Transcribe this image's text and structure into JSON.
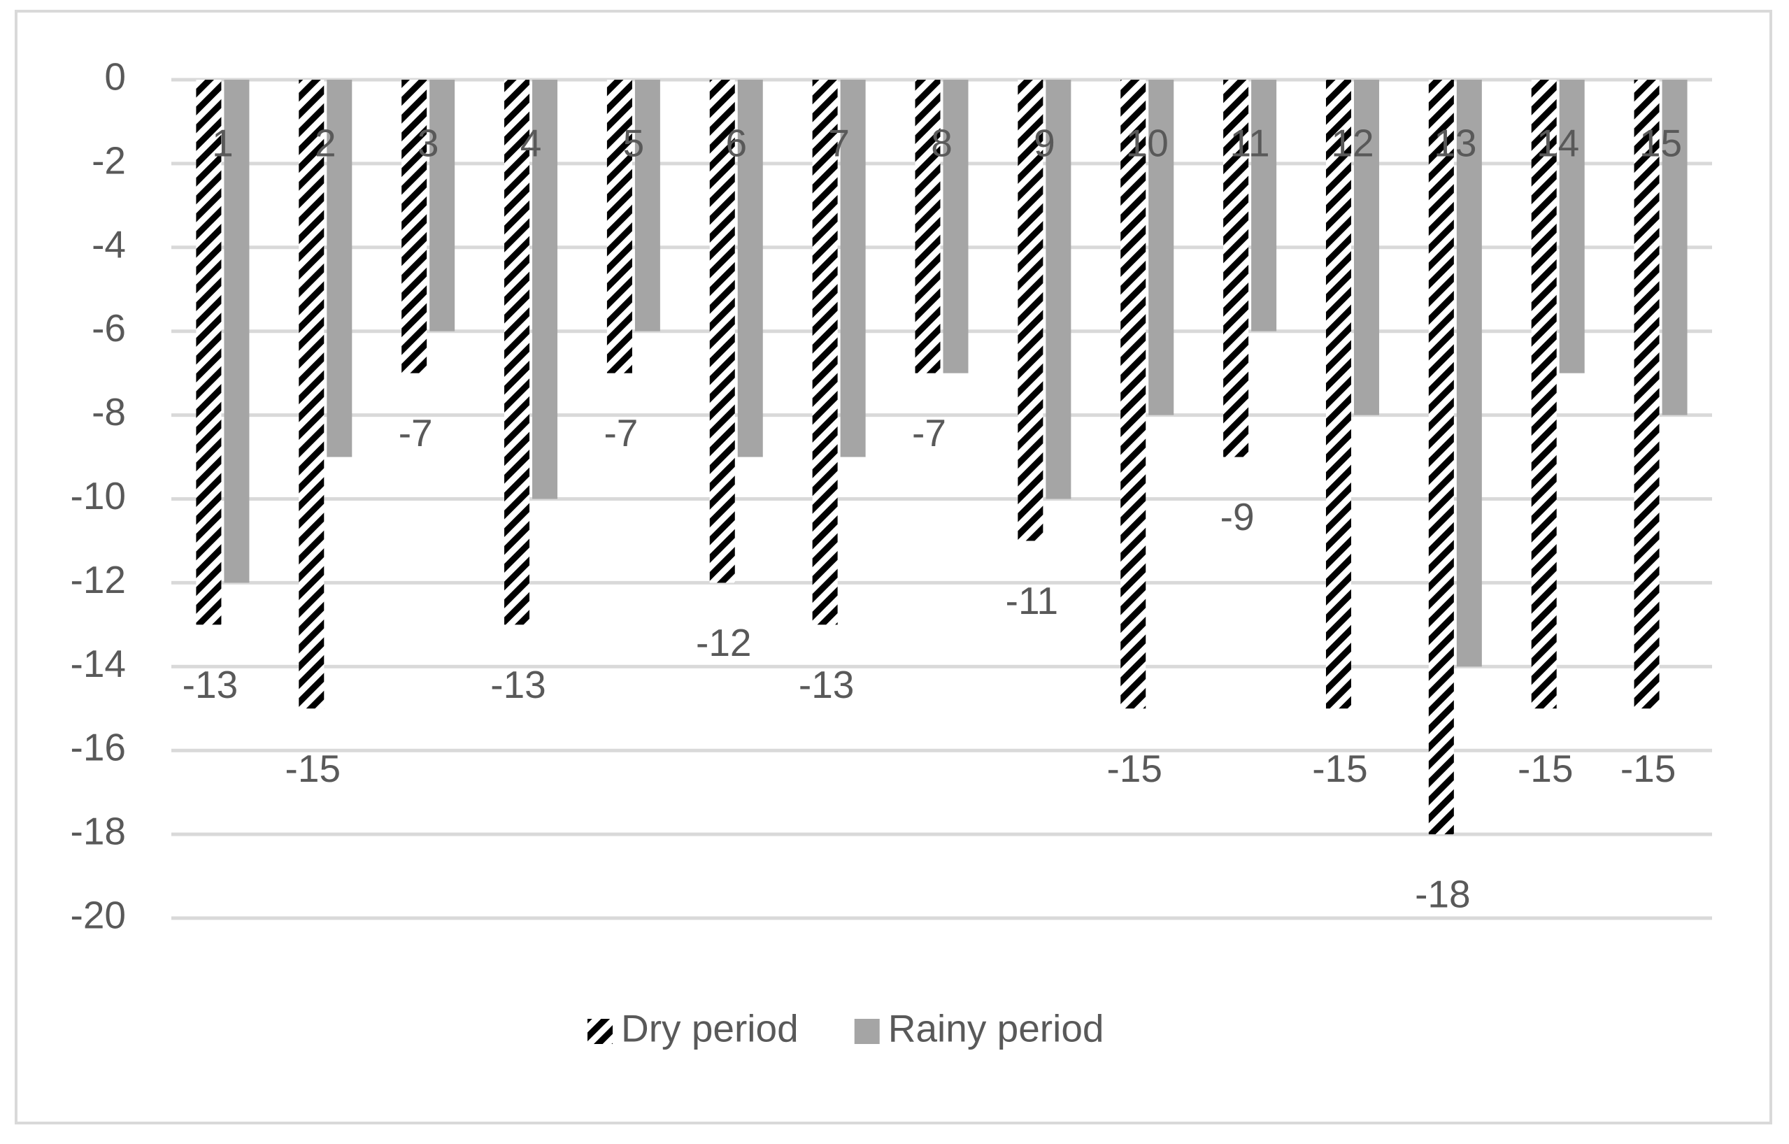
{
  "chart_data": {
    "type": "bar",
    "categories": [
      "1",
      "2",
      "3",
      "4",
      "5",
      "6",
      "7",
      "8",
      "9",
      "10",
      "11",
      "12",
      "13",
      "14",
      "15"
    ],
    "series": [
      {
        "name": "Dry period",
        "color": "#000000",
        "hatch": true,
        "data_labels": true,
        "values": [
          -13,
          -15,
          -7,
          -13,
          -7,
          -12,
          -13,
          -7,
          -11,
          -15,
          -9,
          -15,
          -18,
          -15,
          -15
        ]
      },
      {
        "name": "Rainy period",
        "color": "#a5a5a5",
        "hatch": false,
        "data_labels": false,
        "values": [
          -12,
          -9,
          -6,
          -10,
          -6,
          -9,
          -9,
          -7,
          -10,
          -8,
          -6,
          -8,
          -14,
          -7,
          -8
        ]
      }
    ],
    "ylim": [
      -20,
      0
    ],
    "yticks": [
      0,
      -2,
      -4,
      -6,
      -8,
      -10,
      -12,
      -14,
      -16,
      -18,
      -20
    ],
    "grid": true,
    "legend": "bottom"
  }
}
